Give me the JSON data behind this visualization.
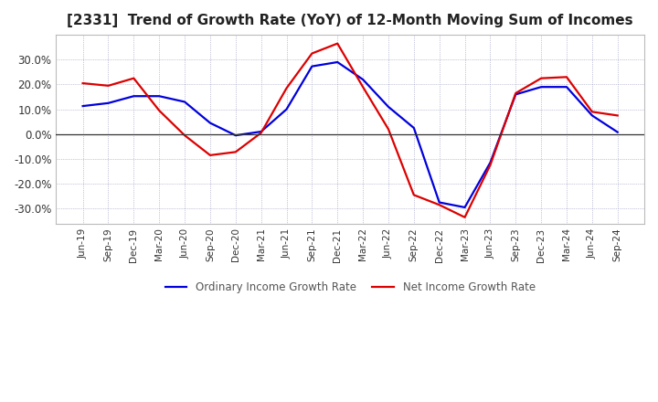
{
  "title": "[2331]  Trend of Growth Rate (YoY) of 12-Month Moving Sum of Incomes",
  "title_fontsize": 11,
  "ylim": [
    -0.36,
    0.4
  ],
  "yticks": [
    -0.3,
    -0.2,
    -0.1,
    0.0,
    0.1,
    0.2,
    0.3
  ],
  "background_color": "#ffffff",
  "plot_bg_color": "#ffffff",
  "grid_color": "#7777aa",
  "x_labels": [
    "Jun-19",
    "Sep-19",
    "Dec-19",
    "Mar-20",
    "Jun-20",
    "Sep-20",
    "Dec-20",
    "Mar-21",
    "Jun-21",
    "Sep-21",
    "Dec-21",
    "Mar-22",
    "Jun-22",
    "Sep-22",
    "Dec-22",
    "Mar-23",
    "Jun-23",
    "Sep-23",
    "Dec-23",
    "Mar-24",
    "Jun-24",
    "Sep-24"
  ],
  "ordinary_income": [
    0.113,
    0.125,
    0.153,
    0.153,
    0.13,
    0.045,
    -0.005,
    0.01,
    0.1,
    0.273,
    0.29,
    0.22,
    0.11,
    0.025,
    -0.275,
    -0.295,
    -0.115,
    0.16,
    0.19,
    0.19,
    0.075,
    0.008
  ],
  "net_income": [
    0.205,
    0.195,
    0.225,
    0.095,
    -0.005,
    -0.085,
    -0.072,
    0.005,
    0.185,
    0.325,
    0.365,
    0.19,
    0.02,
    -0.245,
    -0.285,
    -0.335,
    -0.125,
    0.165,
    0.225,
    0.23,
    0.09,
    0.075
  ],
  "ordinary_color": "#0000dd",
  "net_color": "#dd0000",
  "line_width": 1.6,
  "legend_ordinary": "Ordinary Income Growth Rate",
  "legend_net": "Net Income Growth Rate"
}
